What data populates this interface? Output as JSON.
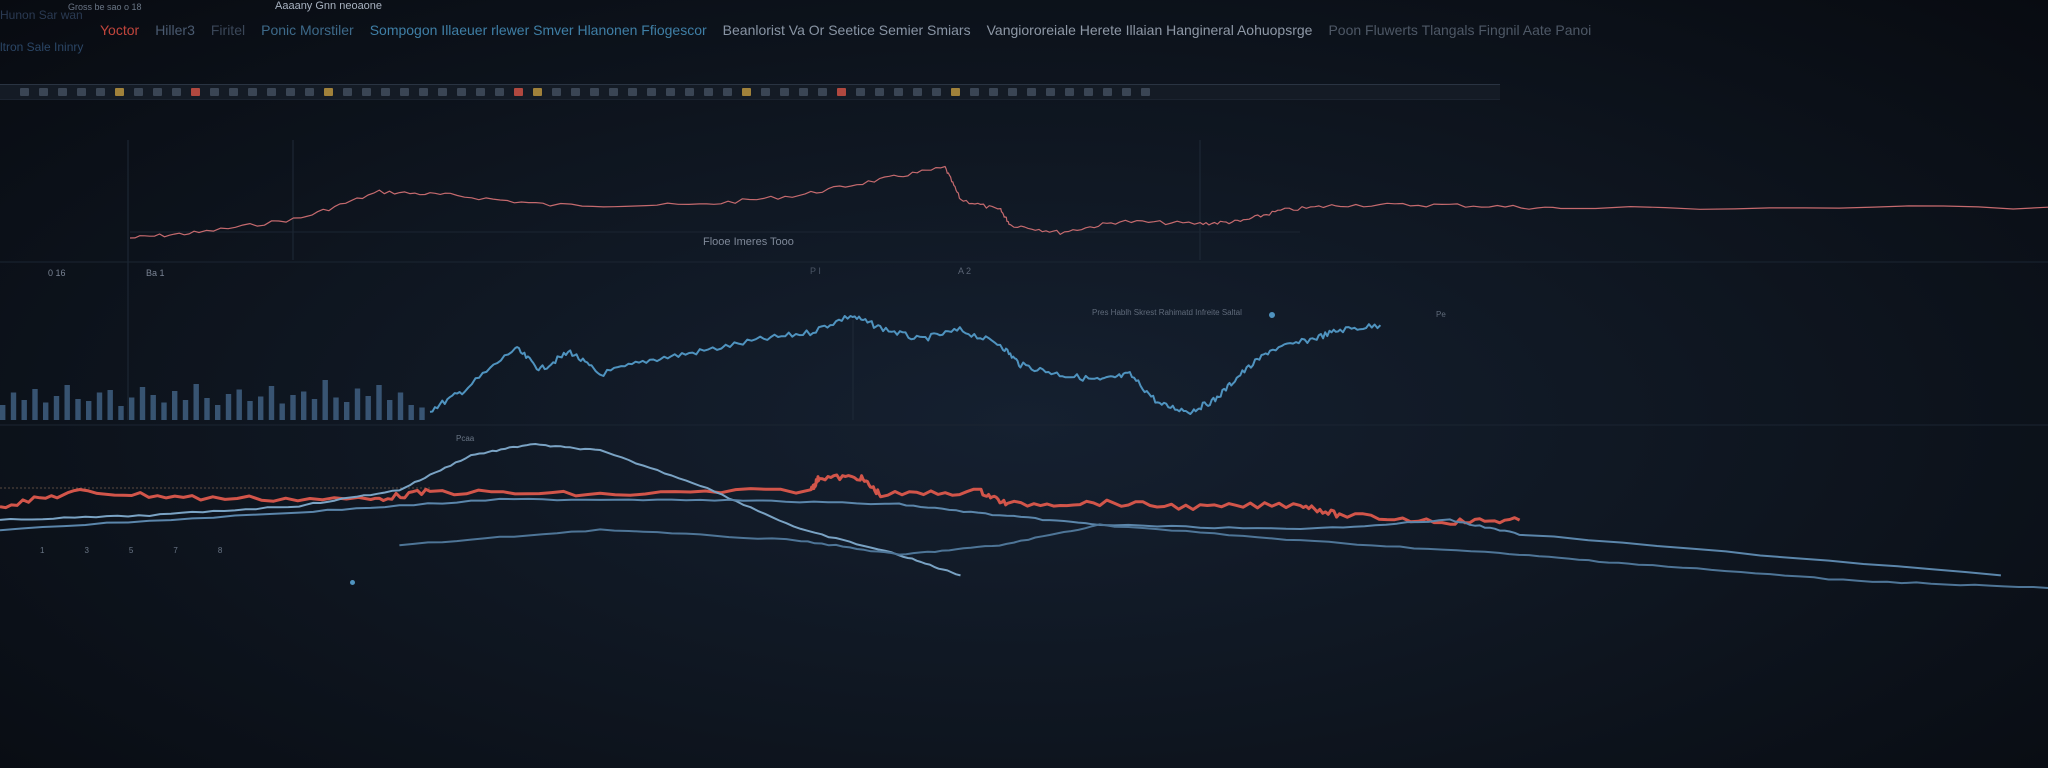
{
  "header": {
    "top_left_small": "Gross be sao o 18",
    "top_center_small": "Aaaany Gnn neoaone",
    "left_label": "Hunon Sar wan",
    "left_label_2": "ltron Sale Ininry",
    "tabs": [
      {
        "label": "Yoctor",
        "color": "#c0453c"
      },
      {
        "label": "Hiller3",
        "color": "#4a5a70"
      },
      {
        "label": "Firitel",
        "color": "#3a4658"
      },
      {
        "label": "Ponic Morstiler",
        "color": "#3d6a8a"
      },
      {
        "label": "Sompogon Illaeuer rlewer Smver Hlanonen Ffiogescor",
        "color": "#3f7fa6"
      },
      {
        "label": "Beanlorist Va Or Seetice Semier Smiars",
        "color": "#8894a4"
      },
      {
        "label": "Vangiororeiale Herete Illaian Hangineral Aohuopsrge",
        "color": "#8e98a6"
      },
      {
        "label": "Poon Fluwerts Tlangals Fingnil Aate Panoi",
        "color": "#4e5866"
      }
    ]
  },
  "toolbar": {
    "button_count": 60
  },
  "labels": {
    "chart_title": "Flooe Imeres Tooo",
    "axis_left_1": "0 16",
    "axis_left_2": "Ba 1",
    "axis_mid": "P I",
    "axis_mid_2": "A 2",
    "legend_text": "Pres Hablh Skrest Rahimatd Infreite Saltal",
    "axis_right": "Pe",
    "bottom_label": "Pcaa",
    "bottom_ticks": [
      "1",
      "3",
      "5",
      "7",
      "8"
    ]
  },
  "chart_data": [
    {
      "type": "line",
      "title": "Flooe Imeres Tooo",
      "ylim": [
        0,
        100
      ],
      "series": [
        {
          "name": "top-red",
          "color": "#c56a6e",
          "x": [
            0,
            3.6,
            8.9,
            13,
            16.7,
            21.9,
            29.7,
            34.9,
            39.1,
            42.5,
            43.3,
            45.4,
            45.9,
            48.5,
            51.6,
            55.8,
            57.9,
            60,
            63.1,
            68.8,
            74.6,
            100
          ],
          "y": [
            20,
            25,
            38,
            62,
            59,
            50,
            50,
            59,
            73,
            84,
            55,
            45,
            32,
            25,
            35,
            33,
            35,
            45,
            50,
            50,
            47,
            48
          ]
        }
      ]
    },
    {
      "type": "line",
      "ylim": [
        0,
        100
      ],
      "series": [
        {
          "name": "mid-blue",
          "color": "#4f93bf",
          "x": [
            0,
            3.6,
            8.9,
            11.5,
            14.6,
            17.7,
            22.9,
            28.1,
            34.4,
            39.6,
            43.8,
            46.9,
            51,
            55.2,
            59.4,
            61.5,
            65.6,
            69.8,
            72.9,
            76,
            79.2,
            81.8,
            84.4,
            87.5,
            91.7,
            94.8,
            99
          ],
          "y": [
            8,
            25,
            60,
            42,
            57,
            38,
            50,
            57,
            67,
            73,
            87,
            77,
            67,
            75,
            63,
            46,
            38,
            33,
            38,
            13,
            7,
            17,
            38,
            58,
            67,
            75,
            79
          ]
        }
      ]
    },
    {
      "type": "bar",
      "name": "left-histogram",
      "color": "#4a6f96",
      "values": [
        30,
        55,
        40,
        62,
        35,
        48,
        70,
        42,
        38,
        55,
        60,
        28,
        45,
        66,
        50,
        35,
        58,
        40,
        72,
        44,
        30,
        52,
        61,
        38,
        47,
        68,
        33,
        50,
        57,
        42,
        80,
        45,
        36,
        63,
        48,
        70,
        40,
        55,
        30,
        25
      ]
    },
    {
      "type": "line",
      "ylim": [
        0,
        100
      ],
      "series": [
        {
          "name": "bottom-red",
          "color": "#d2554a",
          "x": [
            0,
            3.9,
            9.8,
            18.1,
            21,
            29.3,
            39.6,
            40,
            42,
            43,
            47.9,
            49.2,
            53.7,
            58.6,
            63.5,
            65.4,
            70.8,
            74.2
          ],
          "y": [
            52,
            61,
            57,
            56,
            61,
            59,
            62,
            70,
            70,
            59,
            61,
            53,
            54,
            51,
            53,
            46,
            42,
            43
          ]
        },
        {
          "name": "bottom-blue-1",
          "color": "#7aa3c4",
          "x": [
            0,
            7.3,
            14.6,
            19.5,
            23,
            25.9,
            29.3,
            34.2,
            39.1,
            43.9,
            46.9
          ],
          "y": [
            43,
            46,
            52,
            62,
            84,
            91,
            87,
            65,
            37,
            21,
            8
          ]
        },
        {
          "name": "bottom-blue-2",
          "color": "#5b86ab",
          "x": [
            0,
            14.6,
            24.4,
            34.2,
            43.9,
            48.8,
            53.7,
            63.5,
            70.8,
            74.2,
            97.7
          ],
          "y": [
            37,
            48,
            56,
            56,
            53,
            46,
            40,
            37,
            43,
            34,
            8
          ]
        },
        {
          "name": "bottom-blue-3",
          "color": "#4e7597",
          "x": [
            19.5,
            29.3,
            39.1,
            43.9,
            48.8,
            53.7,
            63.5,
            73.2,
            80,
            90,
            100
          ],
          "y": [
            27,
            37,
            30,
            21,
            27,
            40,
            30,
            22,
            15,
            5,
            0
          ]
        }
      ]
    }
  ]
}
